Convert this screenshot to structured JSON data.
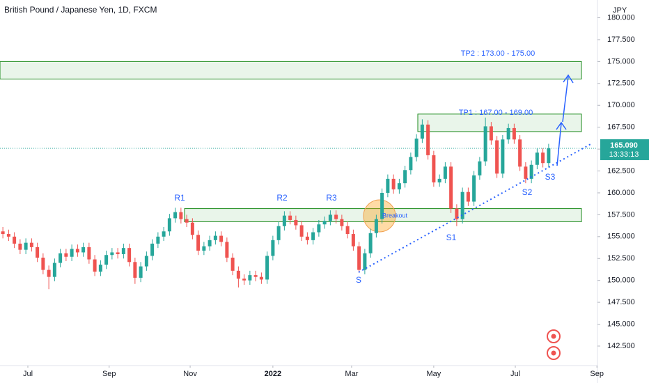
{
  "chart_data": {
    "type": "candlestick",
    "title": "British Pound / Japanese Yen, 1D, FXCM",
    "currency": "JPY",
    "up_color": "#26a69a",
    "down_color": "#ef5350",
    "open": [
      155.6,
      155.3,
      155.0,
      154.2,
      153.5,
      154.3,
      153.8,
      152.6,
      151.2,
      150.4,
      152.0,
      153.1,
      152.7,
      153.6,
      153.2,
      153.8,
      152.4,
      151.0,
      151.8,
      152.9,
      153.2,
      153.0,
      153.7,
      152.1,
      150.3,
      151.6,
      152.8,
      154.2,
      155.0,
      155.6,
      157.1,
      157.8,
      157.0,
      156.6,
      155.2,
      153.4,
      153.9,
      154.6,
      155.1,
      154.4,
      152.6,
      151.1,
      150.2,
      150.0,
      150.6,
      150.4,
      150.1,
      152.8,
      154.6,
      156.2,
      157.4,
      156.9,
      156.3,
      155.0,
      154.6,
      155.5,
      156.4,
      156.8,
      157.5,
      157.0,
      156.2,
      155.3,
      153.9,
      151.2,
      153.1,
      155.4,
      157.0,
      160.0,
      161.6,
      160.4,
      161.1,
      162.6,
      164.1,
      166.2,
      167.8,
      164.3,
      161.2,
      161.6,
      163.0,
      158.2,
      157.0,
      160.1,
      159.0,
      162.0,
      163.6,
      167.6,
      166.0,
      162.2,
      166.1,
      167.4,
      166.1,
      163.0,
      161.6,
      163.2,
      164.6,
      163.4
    ],
    "high": [
      156.1,
      155.8,
      155.5,
      154.7,
      154.8,
      154.8,
      154.3,
      153.1,
      151.7,
      152.5,
      153.6,
      153.6,
      154.1,
      154.1,
      154.3,
      154.3,
      152.9,
      152.3,
      153.4,
      153.7,
      153.7,
      154.2,
      154.2,
      152.6,
      152.1,
      153.3,
      154.7,
      155.5,
      156.1,
      157.6,
      158.3,
      158.3,
      157.5,
      157.1,
      155.7,
      154.4,
      155.1,
      155.6,
      155.6,
      154.9,
      153.1,
      151.6,
      150.7,
      151.1,
      151.1,
      150.9,
      153.3,
      155.1,
      156.7,
      157.9,
      157.9,
      157.4,
      156.8,
      155.5,
      156.0,
      156.9,
      157.3,
      158.0,
      158.0,
      157.5,
      156.7,
      155.8,
      154.4,
      153.6,
      155.9,
      157.5,
      160.5,
      162.1,
      162.1,
      161.6,
      163.1,
      164.6,
      166.7,
      168.4,
      168.3,
      164.8,
      162.1,
      163.5,
      163.5,
      158.7,
      160.6,
      160.6,
      162.5,
      164.1,
      168.6,
      168.1,
      166.5,
      166.6,
      167.9,
      167.9,
      166.6,
      163.5,
      163.7,
      165.1,
      165.1,
      165.6
    ],
    "low": [
      154.8,
      154.5,
      153.7,
      153.0,
      153.0,
      153.3,
      152.1,
      150.7,
      149.0,
      149.9,
      151.5,
      152.2,
      152.2,
      152.7,
      152.7,
      151.9,
      150.5,
      150.5,
      151.3,
      152.4,
      152.5,
      152.5,
      151.6,
      149.6,
      149.8,
      151.1,
      152.3,
      153.7,
      154.5,
      155.1,
      156.6,
      156.5,
      156.1,
      154.7,
      152.9,
      152.9,
      153.4,
      154.1,
      153.9,
      152.1,
      150.6,
      149.2,
      149.5,
      149.5,
      149.9,
      149.6,
      149.6,
      152.3,
      154.1,
      155.7,
      156.4,
      155.8,
      154.5,
      154.1,
      154.1,
      155.0,
      155.9,
      156.3,
      156.5,
      155.7,
      154.8,
      153.4,
      150.9,
      150.7,
      152.6,
      154.9,
      156.5,
      159.5,
      159.9,
      159.9,
      160.6,
      162.1,
      163.6,
      165.7,
      163.8,
      160.7,
      160.7,
      161.1,
      157.7,
      156.2,
      156.5,
      158.5,
      158.5,
      161.5,
      163.1,
      165.5,
      161.7,
      161.7,
      165.6,
      165.6,
      162.5,
      161.1,
      161.1,
      162.7,
      162.9,
      162.9
    ],
    "close": [
      155.3,
      155.0,
      154.2,
      153.5,
      154.3,
      153.8,
      152.6,
      151.2,
      150.4,
      152.0,
      153.1,
      152.7,
      153.6,
      153.2,
      153.8,
      152.4,
      151.0,
      151.8,
      152.9,
      153.2,
      153.0,
      153.7,
      152.1,
      150.3,
      151.6,
      152.8,
      154.2,
      155.0,
      155.6,
      157.1,
      157.8,
      157.0,
      156.6,
      155.2,
      153.4,
      153.9,
      154.6,
      155.1,
      154.4,
      152.6,
      151.1,
      150.2,
      150.0,
      150.6,
      150.4,
      150.1,
      152.8,
      154.6,
      156.2,
      157.4,
      156.9,
      156.3,
      155.0,
      154.6,
      155.5,
      156.4,
      156.8,
      157.5,
      157.0,
      156.2,
      155.3,
      153.9,
      151.2,
      153.1,
      155.4,
      157.0,
      160.0,
      161.6,
      160.4,
      161.1,
      162.6,
      164.1,
      166.2,
      167.8,
      164.3,
      161.2,
      161.6,
      163.0,
      158.2,
      157.0,
      160.1,
      159.0,
      162.0,
      163.6,
      167.6,
      166.0,
      162.2,
      166.1,
      167.4,
      166.1,
      163.0,
      161.6,
      163.2,
      164.6,
      163.4,
      165.09
    ],
    "xlim": [
      -0.5,
      103.5
    ],
    "xticks": [
      {
        "value": 4.35,
        "label": "Jul"
      },
      {
        "value": 18.5,
        "label": "Sep"
      },
      {
        "value": 32.6,
        "label": "Nov"
      },
      {
        "value": 47,
        "label": "2022"
      },
      {
        "value": 60.7,
        "label": "Mar"
      },
      {
        "value": 75,
        "label": "May"
      },
      {
        "value": 89.2,
        "label": "Jul"
      },
      {
        "value": 103.4,
        "label": "Sep"
      }
    ],
    "ylim": [
      140.27,
      182.03
    ],
    "yticks": [
      {
        "value": 142.5,
        "label": "142.500"
      },
      {
        "value": 145,
        "label": "145.000"
      },
      {
        "value": 147.5,
        "label": "147.500"
      },
      {
        "value": 150,
        "label": "150.000"
      },
      {
        "value": 152.5,
        "label": "152.500"
      },
      {
        "value": 155,
        "label": "155.000"
      },
      {
        "value": 157.5,
        "label": "157.500"
      },
      {
        "value": 160,
        "label": "160.000"
      },
      {
        "value": 162.5,
        "label": "162.500"
      },
      {
        "value": 165,
        "label": "165.000"
      },
      {
        "value": 167.5,
        "label": "167.500"
      },
      {
        "value": 170,
        "label": "170.000"
      },
      {
        "value": 172.5,
        "label": "172.500"
      },
      {
        "value": 175,
        "label": "175.000"
      },
      {
        "value": 177.5,
        "label": "177.500"
      },
      {
        "value": 180,
        "label": "180.000"
      }
    ],
    "last_price": {
      "value": 165.09,
      "label": "165.090"
    },
    "countdown": "13:33:13",
    "zones": [
      {
        "low": 173,
        "high": 175
      },
      {
        "low": 167,
        "high": 169
      },
      {
        "low": 156.7,
        "high": 158.2
      }
    ],
    "labels": [
      "R1",
      "R2",
      "R3",
      "S",
      "S1",
      "S2",
      "S3",
      "Breakout",
      "TP1 : 167.00 - 169.00",
      "TP2 : 173.00 - 175.00"
    ]
  }
}
